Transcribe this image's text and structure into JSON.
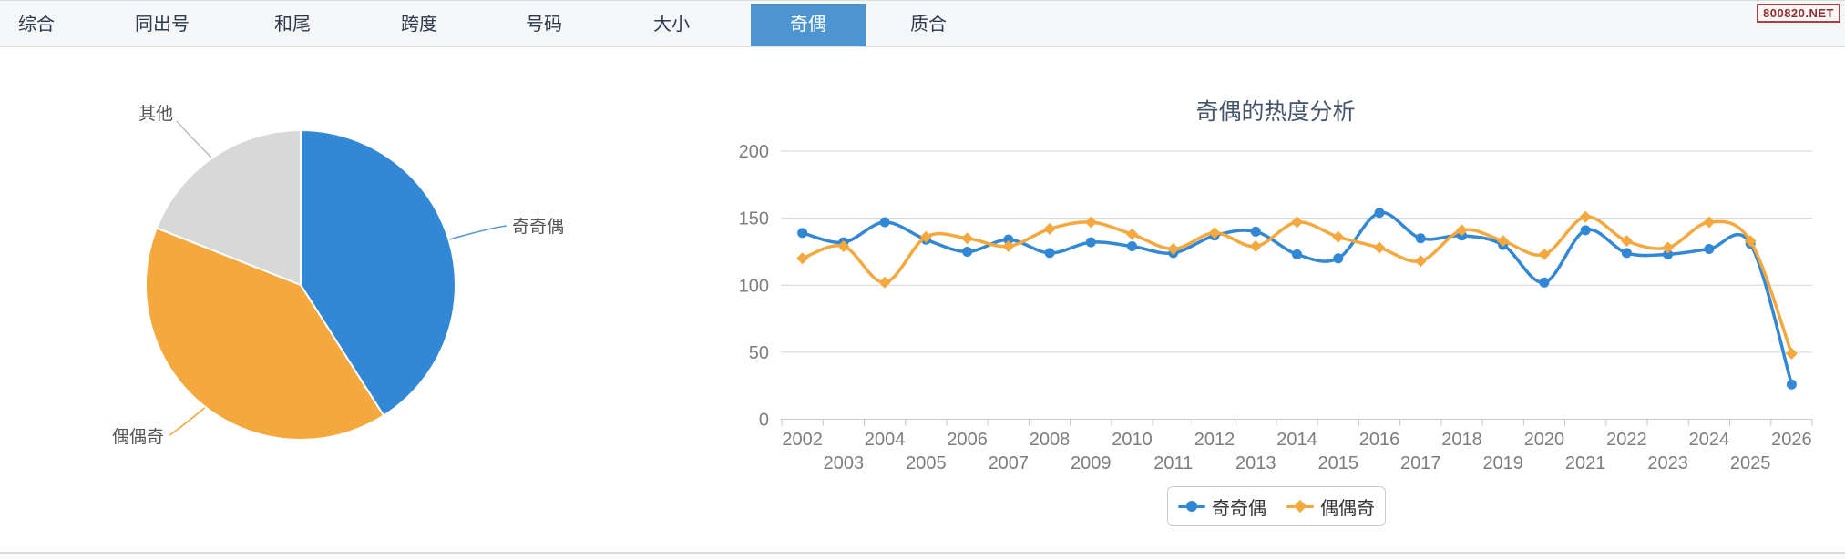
{
  "tab_bar": {
    "tabs": [
      {
        "label": "综合",
        "active": false
      },
      {
        "label": "同出号",
        "active": false
      },
      {
        "label": "和尾",
        "active": false
      },
      {
        "label": "跨度",
        "active": false
      },
      {
        "label": "号码",
        "active": false
      },
      {
        "label": "大小",
        "active": false
      },
      {
        "label": "奇偶",
        "active": true
      },
      {
        "label": "质合",
        "active": false
      }
    ]
  },
  "watermark": {
    "text": "800820.NET"
  },
  "colors": {
    "accent_blue": "#3288D4",
    "accent_orange": "#F4A83E",
    "neutral_gray": "#D8D8D8",
    "active_tab_bg": "#4D95D0",
    "grid": "#D4D4D4",
    "axis_text": "#7D7D7D",
    "title_text": "#44546A",
    "watermark_red": "#8B2F2F"
  },
  "chart_data": [
    {
      "type": "pie",
      "slices": [
        {
          "label": "奇奇偶",
          "value": 41,
          "color": "#3288D4"
        },
        {
          "label": "偶偶奇",
          "value": 40,
          "color": "#F4A83E"
        },
        {
          "label": "其他",
          "value": 19,
          "color": "#D8D8D8"
        }
      ]
    },
    {
      "type": "line",
      "title": "奇偶的热度分析",
      "x": [
        2002,
        2003,
        2004,
        2005,
        2006,
        2007,
        2008,
        2009,
        2010,
        2011,
        2012,
        2013,
        2014,
        2015,
        2016,
        2017,
        2018,
        2019,
        2020,
        2021,
        2022,
        2023,
        2024,
        2025,
        2026
      ],
      "series": [
        {
          "name": "奇奇偶",
          "marker": "circle",
          "color": "#3288D4",
          "values": [
            139,
            132,
            147,
            134,
            125,
            134,
            124,
            132,
            129,
            124,
            137,
            140,
            123,
            120,
            154,
            135,
            137,
            130,
            102,
            141,
            124,
            123,
            127,
            131,
            26
          ]
        },
        {
          "name": "偶偶奇",
          "marker": "diamond",
          "color": "#F4A83E",
          "values": [
            120,
            129,
            102,
            136,
            135,
            129,
            142,
            147,
            138,
            127,
            139,
            129,
            147,
            136,
            128,
            118,
            141,
            133,
            123,
            151,
            133,
            128,
            147,
            133,
            49
          ]
        }
      ],
      "ylim": [
        0,
        200
      ],
      "yticks": [
        0,
        50,
        100,
        150,
        200
      ],
      "grid": true,
      "smooth": true,
      "legend_position": "bottom"
    }
  ]
}
